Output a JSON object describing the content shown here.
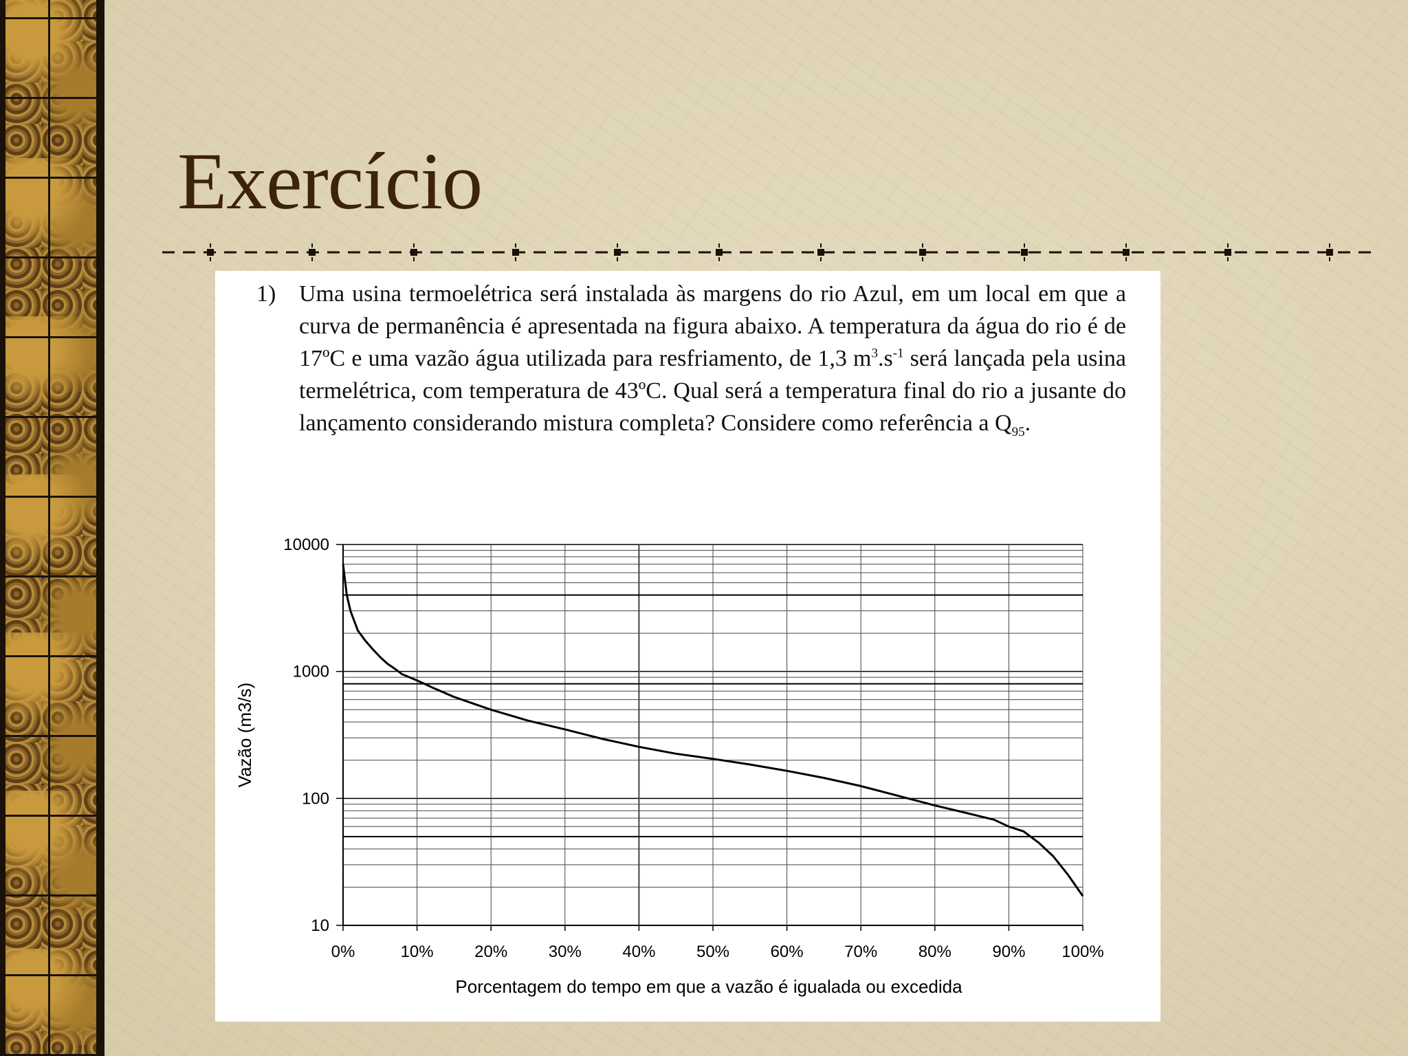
{
  "slide": {
    "title": "Exercício"
  },
  "exercise": {
    "number": "1)",
    "text_main": "Uma usina termoelétrica será instalada às margens do rio Azul, em um local em que a curva de permanência é apresentada na figura abaixo. A temperatura da água do rio é de 17ºC e uma vazão água utilizada para resfriamento, de 1,3 m",
    "sup_3": "3",
    "text_s": ".s",
    "sup_neg1": "-1",
    "text_after": " será lançada pela usina termelétrica, com temperatura de 43ºC. Qual será a temperatura final do rio a jusante do lançamento considerando mistura completa? Considere como referência a Q",
    "sub_95": "95",
    "text_end": "."
  },
  "colors": {
    "title": "#3d220c",
    "border_strip": "#6b4a1e",
    "divider": "#1a1208",
    "curve": "#000000"
  },
  "chart_data": {
    "type": "line",
    "title": "",
    "xlabel": "Porcentagem do tempo em que a vazão é igualada ou excedida",
    "ylabel": "Vazão (m3/s)",
    "yscale": "log",
    "xlim": [
      0,
      100
    ],
    "ylim": [
      10,
      10000
    ],
    "grid": true,
    "x_ticks": [
      "0%",
      "10%",
      "20%",
      "30%",
      "40%",
      "50%",
      "60%",
      "70%",
      "80%",
      "90%",
      "100%"
    ],
    "y_ticks": [
      "10",
      "100",
      "1000",
      "10000"
    ],
    "reference_lines_y": [
      4000,
      800,
      50
    ],
    "series": [
      {
        "name": "",
        "x": [
          0,
          0.5,
          1,
          2,
          3,
          4,
          5,
          6,
          7,
          8,
          10,
          12,
          15,
          20,
          25,
          30,
          35,
          40,
          45,
          50,
          55,
          60,
          65,
          70,
          75,
          80,
          85,
          88,
          90,
          92,
          94,
          96,
          98,
          100
        ],
        "y": [
          7000,
          4000,
          3000,
          2100,
          1750,
          1500,
          1300,
          1150,
          1050,
          950,
          850,
          750,
          630,
          500,
          410,
          350,
          295,
          255,
          225,
          205,
          185,
          165,
          145,
          125,
          105,
          88,
          75,
          68,
          60,
          55,
          45,
          35,
          25,
          17
        ]
      }
    ]
  }
}
